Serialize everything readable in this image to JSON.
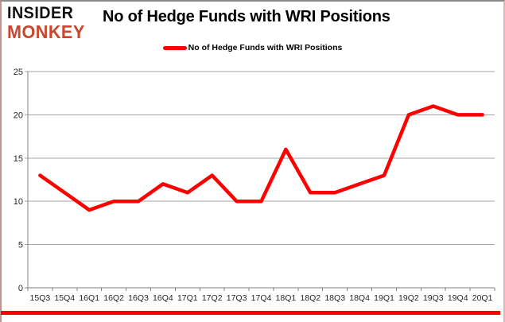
{
  "header": {
    "logo": {
      "line1": "INSIDER",
      "line2": "MONKEY"
    },
    "title": "No of Hedge Funds with WRI Positions"
  },
  "legend": {
    "label": "No of Hedge Funds with WRI Positions"
  },
  "chart_data": {
    "type": "line",
    "title": "No of Hedge Funds with WRI Positions",
    "categories": [
      "15Q3",
      "15Q4",
      "16Q1",
      "16Q2",
      "16Q3",
      "16Q4",
      "17Q1",
      "17Q2",
      "17Q3",
      "17Q4",
      "18Q1",
      "18Q2",
      "18Q3",
      "18Q4",
      "19Q1",
      "19Q2",
      "19Q3",
      "19Q4",
      "20Q1"
    ],
    "series": [
      {
        "name": "No of Hedge Funds with WRI Positions",
        "color": "#fe0000",
        "values": [
          13,
          11,
          9,
          10,
          10,
          12,
          11,
          13,
          10,
          10,
          16,
          11,
          11,
          12,
          13,
          20,
          21,
          20,
          20
        ]
      }
    ],
    "xlabel": "",
    "ylabel": "",
    "ylim": [
      0,
      25
    ],
    "yticks": [
      0,
      5,
      10,
      15,
      20,
      25
    ],
    "grid": true,
    "legend_position": "top-center",
    "gridline_color": "#a6a6a6",
    "axis_color": "#808080",
    "tick_label_color": "#262626"
  },
  "colors": {
    "logo_monkey": "#c9452e",
    "accent_red": "#fe0000",
    "frame_top": "#8a8a8a",
    "frame_sides": "#d8aaaa"
  }
}
